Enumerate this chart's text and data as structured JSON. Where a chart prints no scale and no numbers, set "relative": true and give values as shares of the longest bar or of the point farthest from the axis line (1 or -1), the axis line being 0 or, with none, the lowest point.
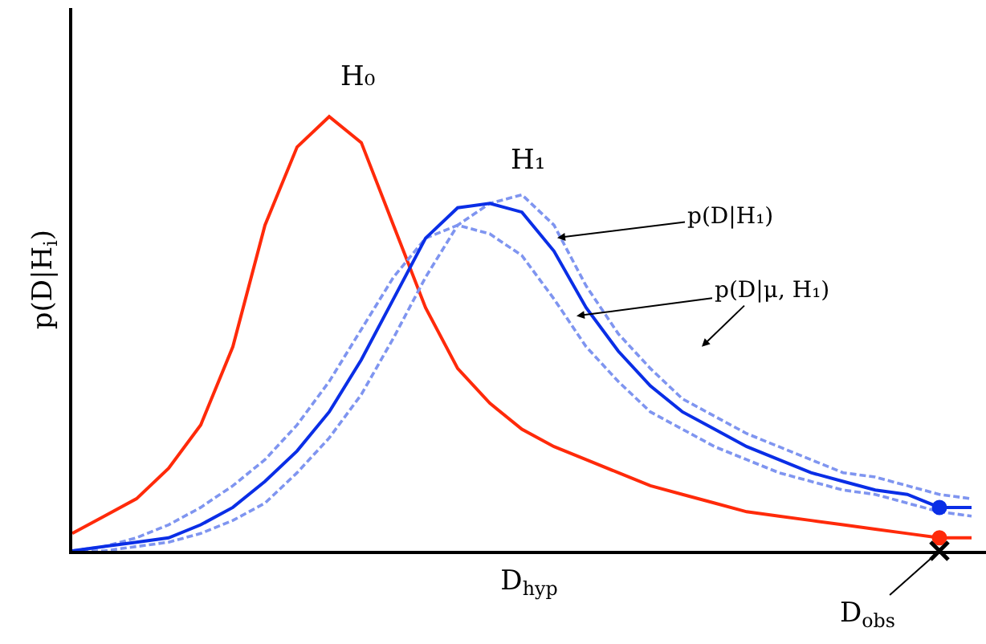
{
  "chart_data": {
    "type": "line",
    "relative": true,
    "xlabel": "D$_{hyp}$",
    "ylabel": "p(D|H$_{i}$)",
    "categories": [
      null,
      null,
      null,
      null,
      null,
      null,
      null,
      null,
      null,
      null,
      null,
      null,
      null,
      null,
      null,
      null,
      null,
      null,
      null,
      null,
      null,
      null,
      null,
      null,
      null,
      null,
      null,
      null,
      null
    ],
    "series": [
      {
        "color": "#ff2a0a",
        "line_style": "solid",
        "values": [
          0.04,
          0.08,
          0.12,
          0.19,
          0.29,
          0.47,
          0.75,
          0.93,
          1.0,
          0.94,
          0.75,
          0.56,
          0.42,
          0.34,
          0.28,
          0.24,
          0.21,
          0.18,
          0.15,
          0.13,
          0.11,
          0.09,
          0.08,
          0.07,
          0.06,
          0.05,
          0.04,
          0.03,
          0.03
        ]
      },
      {
        "color": "#7f95f0",
        "line_style": "dashed",
        "values": [
          0.0,
          0.0,
          0.01,
          0.02,
          0.04,
          0.07,
          0.11,
          0.18,
          0.26,
          0.36,
          0.49,
          0.63,
          0.75,
          0.8,
          0.82,
          0.75,
          0.61,
          0.5,
          0.42,
          0.35,
          0.31,
          0.27,
          0.24,
          0.21,
          0.18,
          0.17,
          0.15,
          0.13,
          0.12
        ]
      },
      {
        "color": "#7f95f0",
        "line_style": "dashed",
        "values": [
          0.0,
          0.01,
          0.03,
          0.06,
          0.1,
          0.15,
          0.21,
          0.29,
          0.39,
          0.51,
          0.63,
          0.72,
          0.75,
          0.73,
          0.68,
          0.58,
          0.47,
          0.39,
          0.32,
          0.28,
          0.24,
          0.21,
          0.18,
          0.16,
          0.14,
          0.13,
          0.11,
          0.09,
          0.08
        ]
      },
      {
        "color": "#0a2ee6",
        "line_style": "solid",
        "values": [
          0.0,
          0.01,
          0.02,
          0.03,
          0.06,
          0.1,
          0.16,
          0.23,
          0.32,
          0.44,
          0.58,
          0.72,
          0.79,
          0.8,
          0.78,
          0.69,
          0.56,
          0.46,
          0.38,
          0.32,
          0.28,
          0.24,
          0.21,
          0.18,
          0.16,
          0.14,
          0.13,
          0.1,
          0.1
        ]
      }
    ],
    "annotations": [
      "H₀",
      "H₁",
      "p(D|H₁)",
      "p(D|μ, H₁)",
      "D$_{obs}$"
    ]
  }
}
